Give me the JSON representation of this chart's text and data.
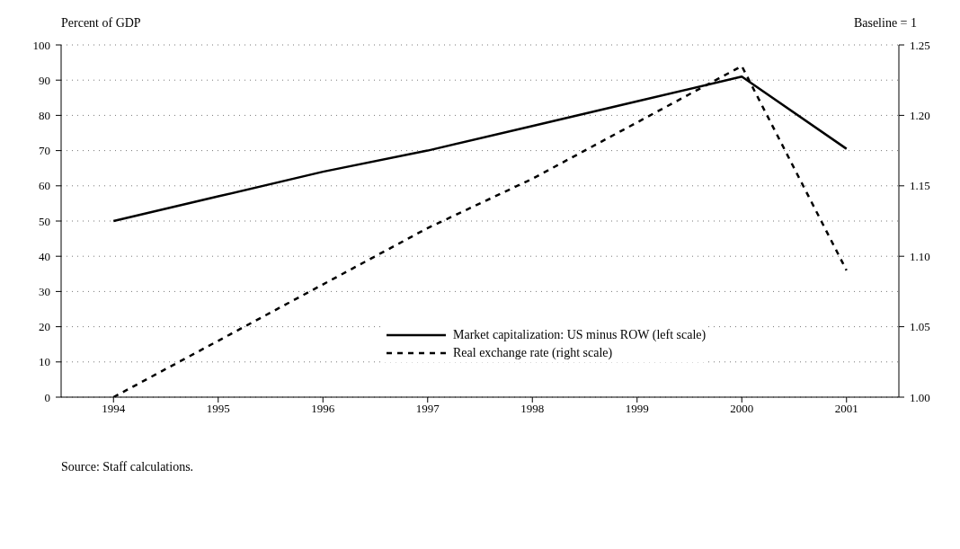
{
  "chart_data": {
    "type": "line",
    "ylabel": "Percent of GDP",
    "y2label": "Baseline = 1",
    "categories": [
      "1994",
      "1995",
      "1996",
      "1997",
      "1998",
      "1999",
      "2000",
      "2001"
    ],
    "series": [
      {
        "name": "Market capitalization: US minus ROW (left scale)",
        "color": "#000000",
        "line_style": "solid",
        "values": [
          50,
          57,
          64,
          70,
          77,
          84,
          91,
          70.5
        ]
      },
      {
        "name": "Real exchange rate (right scale)",
        "color": "#000000",
        "line_style": "dashed",
        "axis": "y2",
        "values": [
          1.0,
          1.04,
          1.08,
          1.12,
          1.155,
          1.195,
          1.235,
          1.09
        ]
      }
    ],
    "ylim": [
      0,
      100
    ],
    "yticks": [
      0,
      10,
      20,
      30,
      40,
      50,
      60,
      70,
      80,
      90,
      100
    ],
    "y2lim": [
      1.0,
      1.25
    ],
    "y2ticks": [
      {
        "value": 1.0,
        "label": "1.00"
      },
      {
        "value": 1.05,
        "label": "1.05"
      },
      {
        "value": 1.1,
        "label": "1.10"
      },
      {
        "value": 1.15,
        "label": "1.15"
      },
      {
        "value": 1.2,
        "label": "1.20"
      },
      {
        "value": 1.25,
        "label": "1.25"
      }
    ],
    "grid": "y",
    "legend": "bottom",
    "marker": "none",
    "annotations": [
      "Source: Staff calculations."
    ]
  }
}
